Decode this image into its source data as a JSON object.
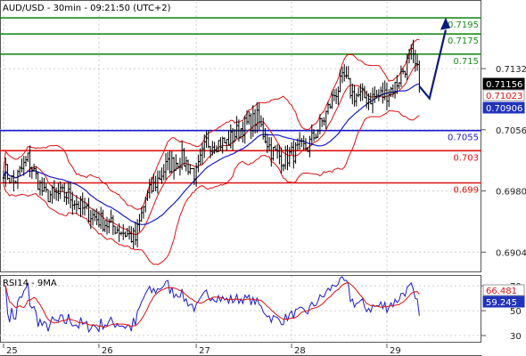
{
  "chart_data": [
    {
      "type": "candlestick",
      "title": "AUD/USD - 30min - 09:21:50 (UTC+2)",
      "ylim": [
        0.688,
        0.7215
      ],
      "y_ticks": [
        {
          "value": 0.7132,
          "label": "0.7132"
        },
        {
          "value": 0.7056,
          "label": "0.7056"
        },
        {
          "value": 0.698,
          "label": "0.6980"
        },
        {
          "value": 0.6904,
          "label": "0.6904"
        }
      ],
      "x_ticks": [
        {
          "pos": 0,
          "label": "25"
        },
        {
          "pos": 47,
          "label": "26"
        },
        {
          "pos": 95,
          "label": "27"
        },
        {
          "pos": 142,
          "label": "28"
        },
        {
          "pos": 189,
          "label": "29"
        }
      ],
      "levels": [
        {
          "value": 0.7195,
          "label": "0.7195",
          "color": "#1f8a1f"
        },
        {
          "value": 0.7175,
          "label": "0.7175",
          "color": "#1f8a1f"
        },
        {
          "value": 0.715,
          "label": "0.715",
          "color": "#1f8a1f"
        },
        {
          "value": 0.7055,
          "label": "0.7055",
          "color": "#1a1acc"
        },
        {
          "value": 0.703,
          "label": "0.703",
          "color": "#dd1111"
        },
        {
          "value": 0.699,
          "label": "0.699",
          "color": "#dd1111"
        }
      ],
      "price_tags": [
        {
          "value": 0.71156,
          "label": "0.71156",
          "bg": "#000000",
          "fg": "#ffffff"
        },
        {
          "value": 0.71023,
          "label": "0.71023",
          "bg": "#ffffff",
          "fg": "#dd1111"
        },
        {
          "value": 0.70906,
          "label": "0.70906",
          "bg": "#2233bb",
          "fg": "#ffffff"
        }
      ],
      "close_anchors": [
        [
          0,
          0.7007
        ],
        [
          5,
          0.699
        ],
        [
          12,
          0.702
        ],
        [
          20,
          0.6975
        ],
        [
          32,
          0.6975
        ],
        [
          40,
          0.6955
        ],
        [
          50,
          0.694
        ],
        [
          55,
          0.6935
        ],
        [
          65,
          0.692
        ],
        [
          70,
          0.697
        ],
        [
          80,
          0.701
        ],
        [
          88,
          0.702
        ],
        [
          95,
          0.7
        ],
        [
          100,
          0.704
        ],
        [
          110,
          0.704
        ],
        [
          118,
          0.706
        ],
        [
          125,
          0.707
        ],
        [
          132,
          0.703
        ],
        [
          138,
          0.702
        ],
        [
          145,
          0.703
        ],
        [
          150,
          0.7035
        ],
        [
          158,
          0.707
        ],
        [
          163,
          0.71
        ],
        [
          168,
          0.712
        ],
        [
          172,
          0.71
        ],
        [
          180,
          0.7095
        ],
        [
          188,
          0.71
        ],
        [
          193,
          0.711
        ],
        [
          197,
          0.713
        ],
        [
          201,
          0.7148
        ],
        [
          205,
          0.712
        ]
      ],
      "projection": [
        [
          205,
          0.711
        ],
        [
          210,
          0.7095
        ],
        [
          218,
          0.718
        ]
      ],
      "series": [
        {
          "key": "candles",
          "color": "#000000"
        },
        {
          "key": "ma_red",
          "color": "#dd1111"
        },
        {
          "key": "ma_blue",
          "color": "#1a1acc"
        },
        {
          "key": "bollinger",
          "color": "#dd1111"
        }
      ]
    },
    {
      "type": "line",
      "title": "RSI14 - 9MA",
      "ylim": [
        25,
        78
      ],
      "y_ticks": [
        {
          "value": 70,
          "label": "70"
        },
        {
          "value": 50,
          "label": "50"
        },
        {
          "value": 30,
          "label": "30"
        }
      ],
      "price_tags": [
        {
          "value": 66.481,
          "label": "66.481",
          "bg": "#ffffff",
          "fg": "#dd1111"
        },
        {
          "value": 59.245,
          "label": "59.245",
          "bg": "#2233bb",
          "fg": "#ffffff"
        }
      ],
      "series": [
        {
          "name": "RSI14",
          "color": "#1a1acc"
        },
        {
          "name": "9MA",
          "color": "#dd1111"
        }
      ]
    }
  ]
}
